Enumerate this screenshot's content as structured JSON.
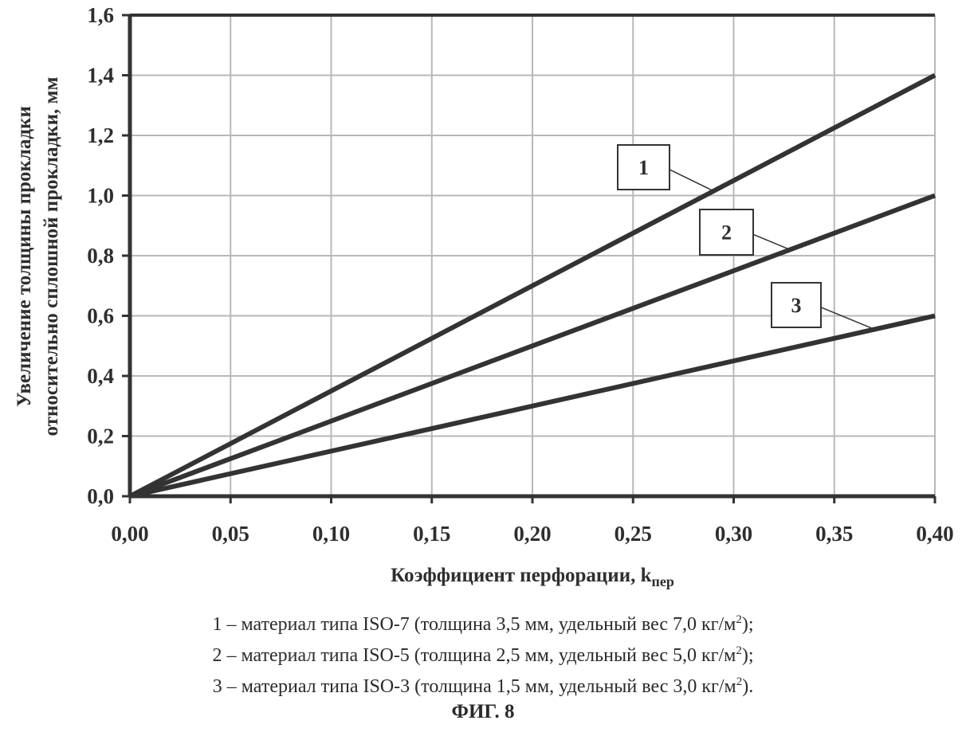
{
  "chart_data": {
    "type": "line",
    "xlabel": "Коэффициент перфорации, k",
    "xlabel_sub": "пер",
    "ylabel_lines": [
      "Увеличение толщины прокладки",
      "относительно сплошной прокладки, мм"
    ],
    "xlim": [
      0,
      0.4
    ],
    "ylim": [
      0,
      1.6
    ],
    "grid": true,
    "xticks": [
      0,
      0.05,
      0.1,
      0.15,
      0.2,
      0.25,
      0.3,
      0.35,
      0.4
    ],
    "xtick_labels": [
      "0,00",
      "0,05",
      "0,10",
      "0,15",
      "0,20",
      "0,25",
      "0,30",
      "0,35",
      "0,40"
    ],
    "yticks": [
      0,
      0.2,
      0.4,
      0.6,
      0.8,
      1.0,
      1.2,
      1.4,
      1.6
    ],
    "ytick_labels": [
      "0,0",
      "0,2",
      "0,4",
      "0,6",
      "0,8",
      "1,0",
      "1,2",
      "1,4",
      "1,6"
    ],
    "series": [
      {
        "name": "1",
        "x": [
          0,
          0.4
        ],
        "y": [
          0,
          1.4
        ],
        "label_anchor_x": 0.29
      },
      {
        "name": "2",
        "x": [
          0,
          0.4
        ],
        "y": [
          0,
          1.0
        ],
        "label_anchor_x": 0.328
      },
      {
        "name": "3",
        "x": [
          0,
          0.4
        ],
        "y": [
          0,
          0.6
        ],
        "label_anchor_x": 0.37
      }
    ],
    "line_color": "#333333",
    "grid_color": "#b8b8b8"
  },
  "legend": [
    {
      "text": "1 – материал типа ISO-7 (толщина 3,5 мм, удельный вес 7,0 кг/м",
      "sup": "2",
      "end": ");"
    },
    {
      "text": "2 – материал типа ISO-5 (толщина 2,5 мм, удельный вес 5,0 кг/м",
      "sup": "2",
      "end": ");"
    },
    {
      "text": "3 – материал типа ISO-3 (толщина 1,5 мм, удельный вес 3,0 кг/м",
      "sup": "2",
      "end": ")."
    }
  ],
  "figure_caption": "ФИГ. 8"
}
